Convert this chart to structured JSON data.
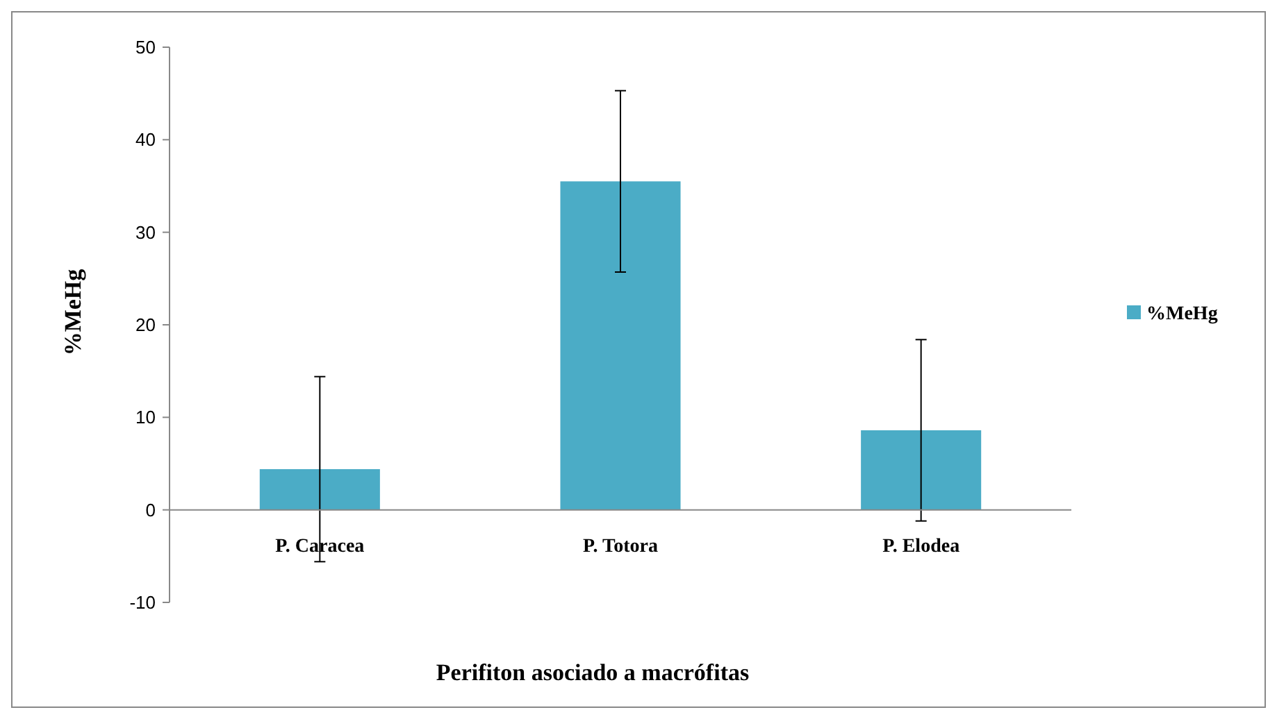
{
  "chart_data": {
    "type": "bar",
    "xlabel": "Perifiton asociado a macrófitas",
    "ylabel": "%MeHg",
    "categories": [
      "P. Caracea",
      "P. Totora",
      "P. Elodea"
    ],
    "series": [
      {
        "name": "%MeHg",
        "color": "#4bacc6",
        "values": [
          4.4,
          35.5,
          8.6
        ],
        "errors": [
          10,
          9.8,
          9.8
        ]
      }
    ],
    "ylim": [
      -10,
      50
    ],
    "yticks": [
      -10,
      0,
      10,
      20,
      30,
      40,
      50
    ],
    "grid": false,
    "legend": "right"
  }
}
